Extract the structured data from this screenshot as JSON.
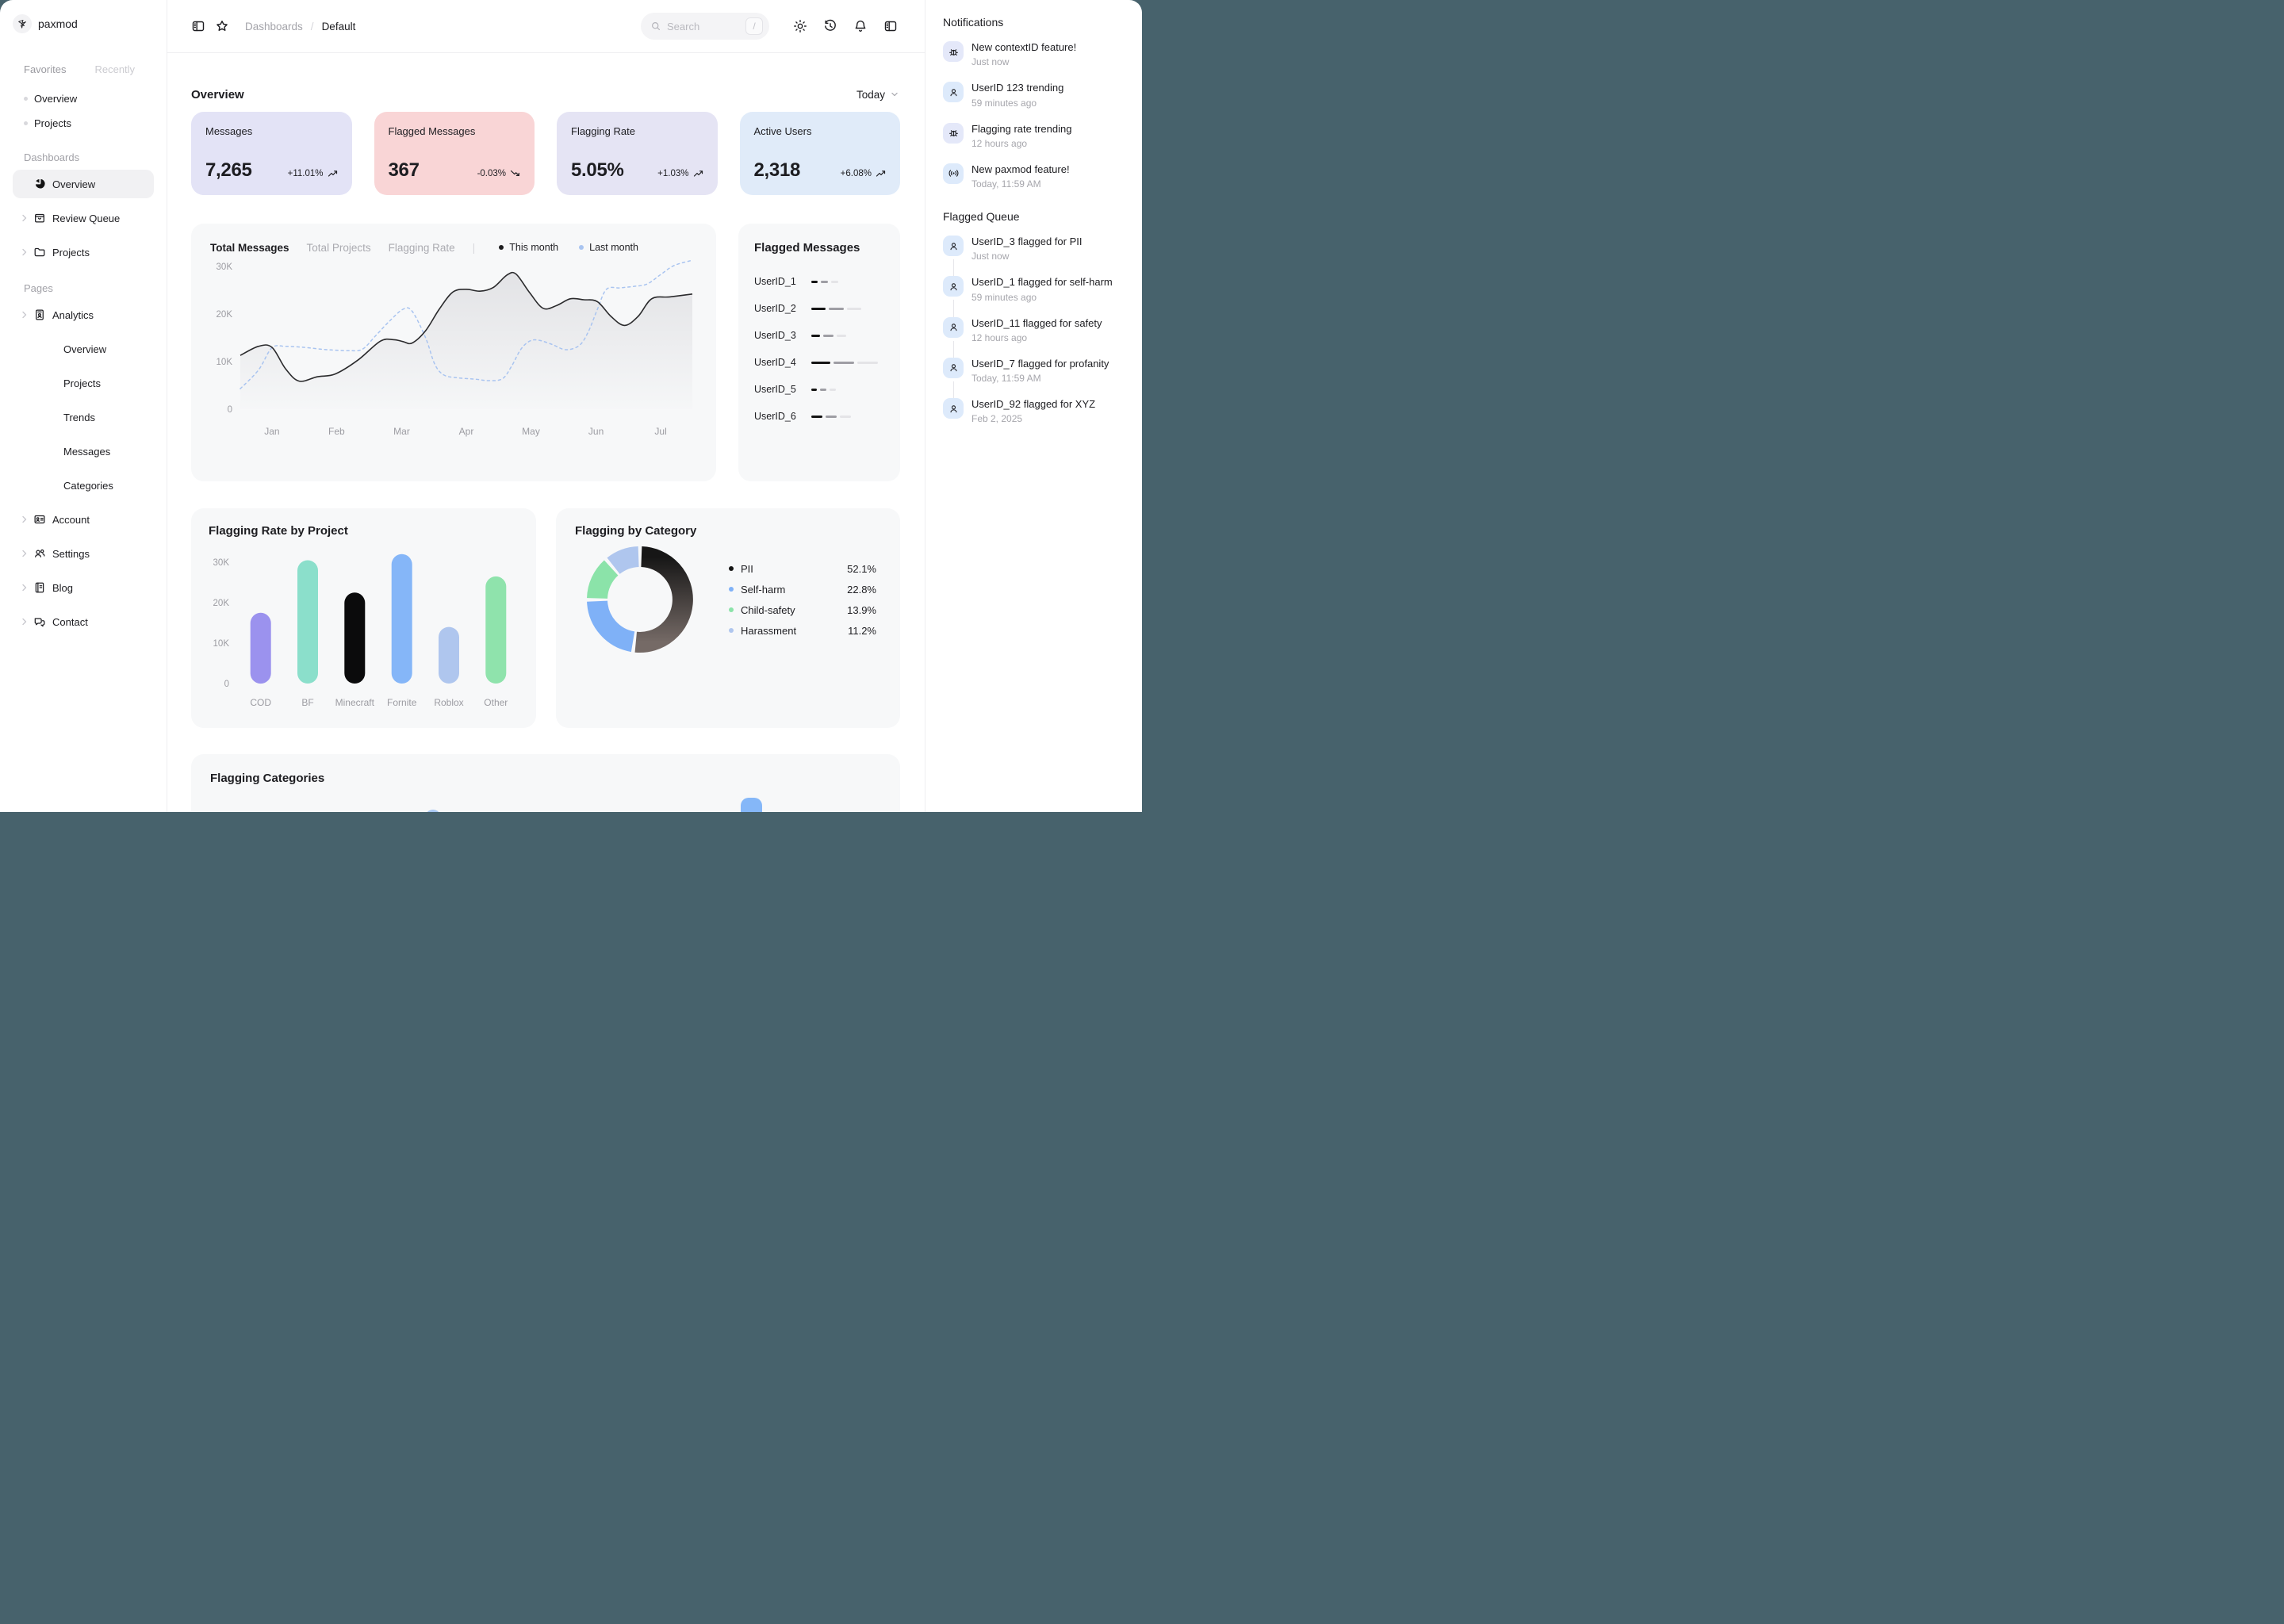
{
  "window": {
    "backdrop_color": "#47626C"
  },
  "brand": {
    "name": "paxmod"
  },
  "sidebar": {
    "tabs": [
      {
        "label": "Favorites"
      },
      {
        "label": "Recently"
      }
    ],
    "favorites": [
      {
        "label": "Overview"
      },
      {
        "label": "Projects"
      }
    ],
    "dashboards_label": "Dashboards",
    "dashboards": [
      {
        "label": "Overview",
        "icon": "pie-chart-icon",
        "active": true,
        "chevron": false
      },
      {
        "label": "Review Queue",
        "icon": "shopping-bag-icon",
        "active": false,
        "chevron": true
      },
      {
        "label": "Projects",
        "icon": "folder-icon",
        "active": false,
        "chevron": true
      }
    ],
    "pages_label": "Pages",
    "pages": [
      {
        "label": "Analytics",
        "icon": "id-badge-icon",
        "chevron": true
      },
      {
        "label": "Overview",
        "sub": true
      },
      {
        "label": "Projects",
        "sub": true
      },
      {
        "label": "Trends",
        "sub": true
      },
      {
        "label": "Messages",
        "sub": true
      },
      {
        "label": "Categories",
        "sub": true
      },
      {
        "label": "Account",
        "icon": "id-card-icon",
        "chevron": true
      },
      {
        "label": "Settings",
        "icon": "users-icon",
        "chevron": true
      },
      {
        "label": "Blog",
        "icon": "book-icon",
        "chevron": true
      },
      {
        "label": "Contact",
        "icon": "chat-icon",
        "chevron": true
      }
    ]
  },
  "header": {
    "breadcrumb": {
      "parent": "Dashboards",
      "separator": "/",
      "current": "Default"
    },
    "search": {
      "placeholder": "Search",
      "shortcut": "/"
    }
  },
  "overview": {
    "title": "Overview",
    "range_label": "Today",
    "kpis": [
      {
        "label": "Messages",
        "value": "7,265",
        "delta": "+11.01%",
        "direction": "up",
        "bg": "#E3E3F6"
      },
      {
        "label": "Flagged Messages",
        "value": "367",
        "delta": "-0.03%",
        "direction": "down",
        "bg": "#F9D5D6"
      },
      {
        "label": "Flagging Rate",
        "value": "5.05%",
        "delta": "+1.03%",
        "direction": "up",
        "bg": "#E5E4F4"
      },
      {
        "label": "Active Users",
        "value": "2,318",
        "delta": "+6.08%",
        "direction": "up",
        "bg": "#E0EBF9"
      }
    ]
  },
  "chart_data": [
    {
      "id": "total_messages_line",
      "type": "line",
      "tabs": [
        "Total Messages",
        "Total Projects",
        "Flagging Rate"
      ],
      "active_tab": "Total Messages",
      "legend": [
        {
          "label": "This month",
          "color": "#1C1C1E"
        },
        {
          "label": "Last month",
          "color": "#A9C4F0"
        }
      ],
      "y_ticks": [
        "30K",
        "20K",
        "10K",
        "0"
      ],
      "ylim_k": [
        0,
        31.5
      ],
      "x_ticks": [
        "Jan",
        "Feb",
        "Mar",
        "Apr",
        "May",
        "Jun",
        "Jul"
      ],
      "unit": "K",
      "grid": false,
      "series": [
        {
          "name": "This month",
          "style": "solid",
          "color": "#2A2A2C",
          "area": true,
          "points": [
            [
              0,
              11.3
            ],
            [
              4,
              13.2
            ],
            [
              7,
              13.0
            ],
            [
              10,
              8.5
            ],
            [
              13,
              5.9
            ],
            [
              17,
              6.8
            ],
            [
              21,
              7.4
            ],
            [
              26,
              10.3
            ],
            [
              31,
              14.3
            ],
            [
              34,
              14.6
            ],
            [
              36,
              14.2
            ],
            [
              38,
              13.9
            ],
            [
              41,
              16.5
            ],
            [
              44,
              21.0
            ],
            [
              47,
              24.6
            ],
            [
              50,
              25.2
            ],
            [
              53,
              24.8
            ],
            [
              56,
              25.6
            ],
            [
              59,
              28.2
            ],
            [
              61,
              28.4
            ],
            [
              64,
              24.5
            ],
            [
              67,
              21.2
            ],
            [
              70,
              21.8
            ],
            [
              73,
              23.2
            ],
            [
              76,
              23.0
            ],
            [
              79,
              22.6
            ],
            [
              82,
              19.5
            ],
            [
              85,
              17.6
            ],
            [
              88,
              19.5
            ],
            [
              91,
              23.2
            ],
            [
              95,
              23.6
            ],
            [
              100,
              24.2
            ]
          ]
        },
        {
          "name": "Last month",
          "style": "dashed",
          "color": "#A9C4F0",
          "area": false,
          "points": [
            [
              0,
              4.3
            ],
            [
              4,
              8.2
            ],
            [
              7,
              12.9
            ],
            [
              10,
              13.2
            ],
            [
              14,
              13.0
            ],
            [
              18,
              12.6
            ],
            [
              21,
              12.4
            ],
            [
              24,
              12.3
            ],
            [
              27,
              12.6
            ],
            [
              30,
              15.5
            ],
            [
              33,
              18.5
            ],
            [
              36,
              21.0
            ],
            [
              38,
              20.6
            ],
            [
              41,
              15.0
            ],
            [
              43,
              9.5
            ],
            [
              45,
              7.2
            ],
            [
              48,
              6.6
            ],
            [
              52,
              6.3
            ],
            [
              55,
              6.0
            ],
            [
              58,
              6.4
            ],
            [
              60,
              9.0
            ],
            [
              62,
              12.5
            ],
            [
              64,
              14.3
            ],
            [
              66,
              14.5
            ],
            [
              69,
              13.6
            ],
            [
              72,
              12.5
            ],
            [
              75,
              13.4
            ],
            [
              77,
              16.3
            ],
            [
              79,
              21.0
            ],
            [
              81,
              25.2
            ],
            [
              84,
              25.5
            ],
            [
              87,
              25.8
            ],
            [
              90,
              26.3
            ],
            [
              93,
              28.3
            ],
            [
              96,
              30.2
            ],
            [
              100,
              31.3
            ]
          ]
        }
      ]
    },
    {
      "id": "flagged_messages",
      "type": "table",
      "title": "Flagged Messages",
      "segment_colors": [
        "#141414",
        "#9E9EA4",
        "#E4E4E7"
      ],
      "rows": [
        {
          "label": "UserID_1",
          "segments": [
            8,
            9,
            9
          ]
        },
        {
          "label": "UserID_2",
          "segments": [
            18,
            19,
            18
          ]
        },
        {
          "label": "UserID_3",
          "segments": [
            11,
            13,
            12
          ]
        },
        {
          "label": "UserID_4",
          "segments": [
            24,
            26,
            26
          ]
        },
        {
          "label": "UserID_5",
          "segments": [
            7,
            8,
            8
          ]
        },
        {
          "label": "UserID_6",
          "segments": [
            14,
            14,
            14
          ]
        }
      ]
    },
    {
      "id": "flagging_rate_by_project",
      "type": "bar",
      "title": "Flagging Rate by Project",
      "categories": [
        "COD",
        "BF",
        "Minecraft",
        "Fornite",
        "Roblox",
        "Other"
      ],
      "values_k": [
        17.5,
        30.5,
        22.5,
        32,
        14,
        26.5
      ],
      "colors": [
        "#9B92EE",
        "#8BDFCB",
        "#0B0B0C",
        "#85B6F8",
        "#AFC6EE",
        "#8FE3AC"
      ],
      "y_ticks": [
        "30K",
        "20K",
        "10K",
        "0"
      ],
      "ylim_k": [
        0,
        32
      ],
      "unit": "K",
      "grid": false
    },
    {
      "id": "flagging_by_category",
      "type": "pie",
      "title": "Flagging by Category",
      "slices": [
        {
          "label": "PII",
          "value": 52.1,
          "display": "52.1%",
          "color": "#161616",
          "color_end": "#756A66"
        },
        {
          "label": "Self-harm",
          "value": 22.8,
          "display": "22.8%",
          "color": "#7FB1F7"
        },
        {
          "label": "Child-safety",
          "value": 13.9,
          "display": "13.9%",
          "color": "#8BE3A9"
        },
        {
          "label": "Harassment",
          "value": 11.2,
          "display": "11.2%",
          "color": "#AFC6EE"
        }
      ],
      "legend_position": "right"
    },
    {
      "id": "flagging_categories",
      "type": "bar",
      "title": "Flagging Categories",
      "note": "card clipped by viewport bottom; only two bar tops visible",
      "visible_bars": [
        {
          "x": 295,
          "width": 20,
          "top": 70,
          "color": "#A9C8F3"
        },
        {
          "x": 693,
          "width": 27,
          "top": 55,
          "color": "#85B7F8"
        }
      ]
    }
  ],
  "right_panel": {
    "notifications": {
      "title": "Notifications",
      "items": [
        {
          "icon": "bug-icon",
          "tile": "#E4E8F9",
          "title": "New contextID feature!",
          "time": "Just now"
        },
        {
          "icon": "user-icon",
          "tile": "#DDEAFB",
          "title": "UserID 123 trending",
          "time": "59 minutes ago"
        },
        {
          "icon": "bug-icon",
          "tile": "#E4E8F9",
          "title": "Flagging rate trending",
          "time": "12 hours ago"
        },
        {
          "icon": "broadcast-icon",
          "tile": "#DDEAFB",
          "title": "New paxmod feature!",
          "time": "Today, 11:59 AM"
        }
      ]
    },
    "flagged_queue": {
      "title": "Flagged Queue",
      "items": [
        {
          "icon": "user-icon",
          "tile": "#DDEAFB",
          "title": "UserID_3 flagged for PII",
          "time": "Just now"
        },
        {
          "icon": "user-icon",
          "tile": "#DDEAFB",
          "title": "UserID_1 flagged for self-harm",
          "time": "59 minutes ago"
        },
        {
          "icon": "user-icon",
          "tile": "#DDEAFB",
          "title": "UserID_11 flagged for safety",
          "time": "12 hours ago"
        },
        {
          "icon": "user-icon",
          "tile": "#DDEAFB",
          "title": "UserID_7 flagged for profanity",
          "time": "Today, 11:59 AM"
        },
        {
          "icon": "user-icon",
          "tile": "#DDEAFB",
          "title": "UserID_92 flagged for XYZ",
          "time": "Feb 2, 2025"
        }
      ]
    }
  }
}
